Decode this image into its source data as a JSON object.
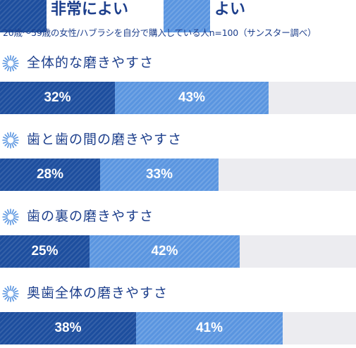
{
  "legend": {
    "very_good": {
      "label": "非常によい",
      "color": "#1d4e9e"
    },
    "good": {
      "label": "よい",
      "color": "#5a95e0"
    }
  },
  "note": "20歳〜59歳の女性/ハブラシを自分で購入している人n=100（サンスター調べ）",
  "icon": "sunburst-icon",
  "chart_data": {
    "type": "bar",
    "orientation": "horizontal",
    "stacked": true,
    "unit": "%",
    "xlim": [
      0,
      100
    ],
    "categories": [
      "全体的な磨きやすさ",
      "歯と歯の間の磨きやすさ",
      "歯の裏の磨きやすさ",
      "奥歯全体の磨きやすさ"
    ],
    "series": [
      {
        "name": "非常によい",
        "values": [
          32,
          28,
          25,
          38
        ],
        "labels": [
          "32%",
          "28%",
          "25%",
          "38%"
        ],
        "color": "#1d4e9e"
      },
      {
        "name": "よい",
        "values": [
          43,
          33,
          42,
          41
        ],
        "labels": [
          "43%",
          "33%",
          "42%",
          "41%"
        ],
        "color": "#5a95e0"
      }
    ],
    "legend_position": "top-left",
    "grid": false
  }
}
